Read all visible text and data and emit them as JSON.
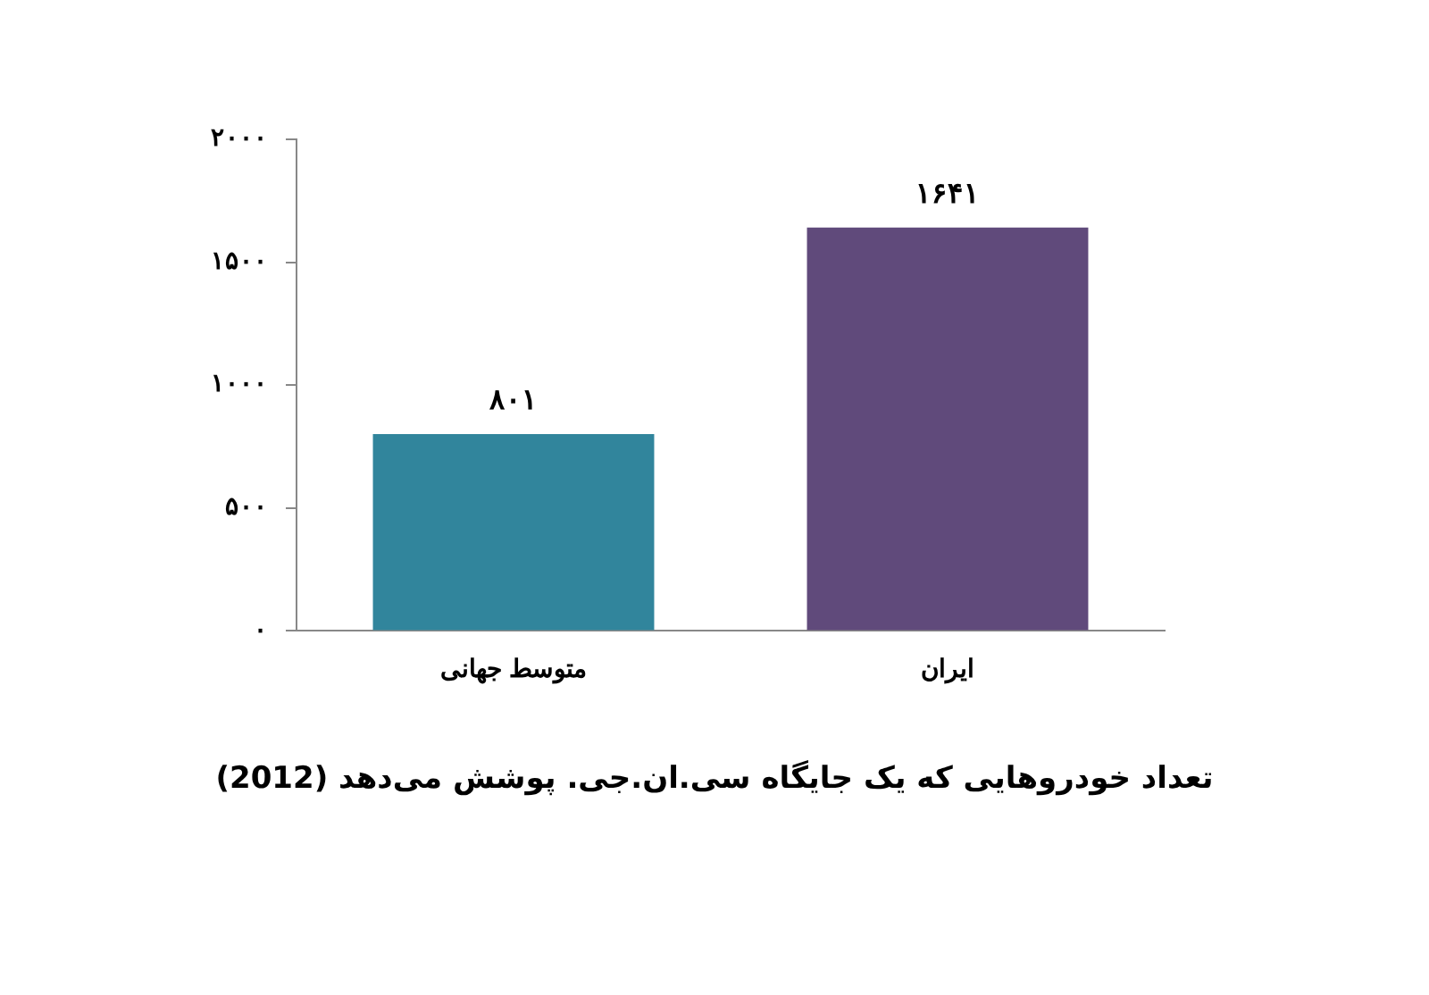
{
  "chart_data": {
    "type": "bar",
    "categories": [
      "متوسط جهانی",
      "ایران"
    ],
    "values": [
      801,
      1641
    ],
    "colors": [
      "#31859c",
      "#604a7b"
    ],
    "value_labels": [
      "۸۰۱",
      "۱۶۴۱"
    ],
    "ylim": [
      0,
      2000
    ],
    "yticks": [
      {
        "value": 0,
        "label": "۰"
      },
      {
        "value": 500,
        "label": "۵۰۰"
      },
      {
        "value": 1000,
        "label": "۱۰۰۰"
      },
      {
        "value": 1500,
        "label": "۱۵۰۰"
      },
      {
        "value": 2000,
        "label": "۲۰۰۰"
      }
    ],
    "grid": false,
    "legend": false,
    "annotations": [
      "تعداد خودروهایی که یک جایگاه سی.ان.جی. پوشش می‌دهد (2012)"
    ]
  }
}
